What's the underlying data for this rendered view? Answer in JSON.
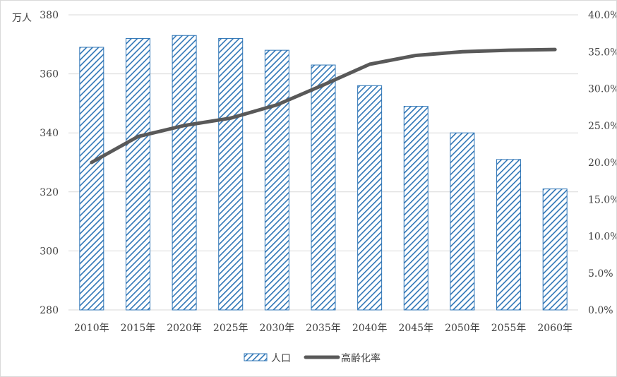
{
  "chart_data": {
    "type": "bar",
    "y_unit_label": "万人",
    "categories": [
      "2010年",
      "2015年",
      "2020年",
      "2025年",
      "2030年",
      "2035年",
      "2040年",
      "2045年",
      "2050年",
      "2055年",
      "2060年"
    ],
    "series": [
      {
        "name": "人口",
        "type": "bar",
        "axis": "left",
        "values": [
          369,
          372,
          373,
          372,
          368,
          363,
          356,
          349,
          340,
          331,
          321
        ]
      },
      {
        "name": "高齢化率",
        "type": "line",
        "axis": "right",
        "values": [
          20.0,
          23.5,
          25.0,
          26.0,
          27.8,
          30.5,
          33.3,
          34.5,
          35.0,
          35.2,
          35.3
        ]
      }
    ],
    "left_axis": {
      "ylim": [
        280,
        380
      ],
      "ticks": [
        280,
        300,
        320,
        340,
        360,
        380
      ]
    },
    "right_axis": {
      "ylim": [
        0,
        40
      ],
      "ticks": [
        "0.0%",
        "5.0%",
        "10.0%",
        "15.0%",
        "20.0%",
        "25.0%",
        "30.0%",
        "35.0%",
        "40.0%"
      ]
    },
    "grid": true,
    "legend_position": "bottom",
    "colors": {
      "bar_stroke": "#2e75b6",
      "bar_hatch": "#2e75b6",
      "line": "#595959",
      "grid": "#d9d9d9",
      "text": "#404040"
    }
  }
}
